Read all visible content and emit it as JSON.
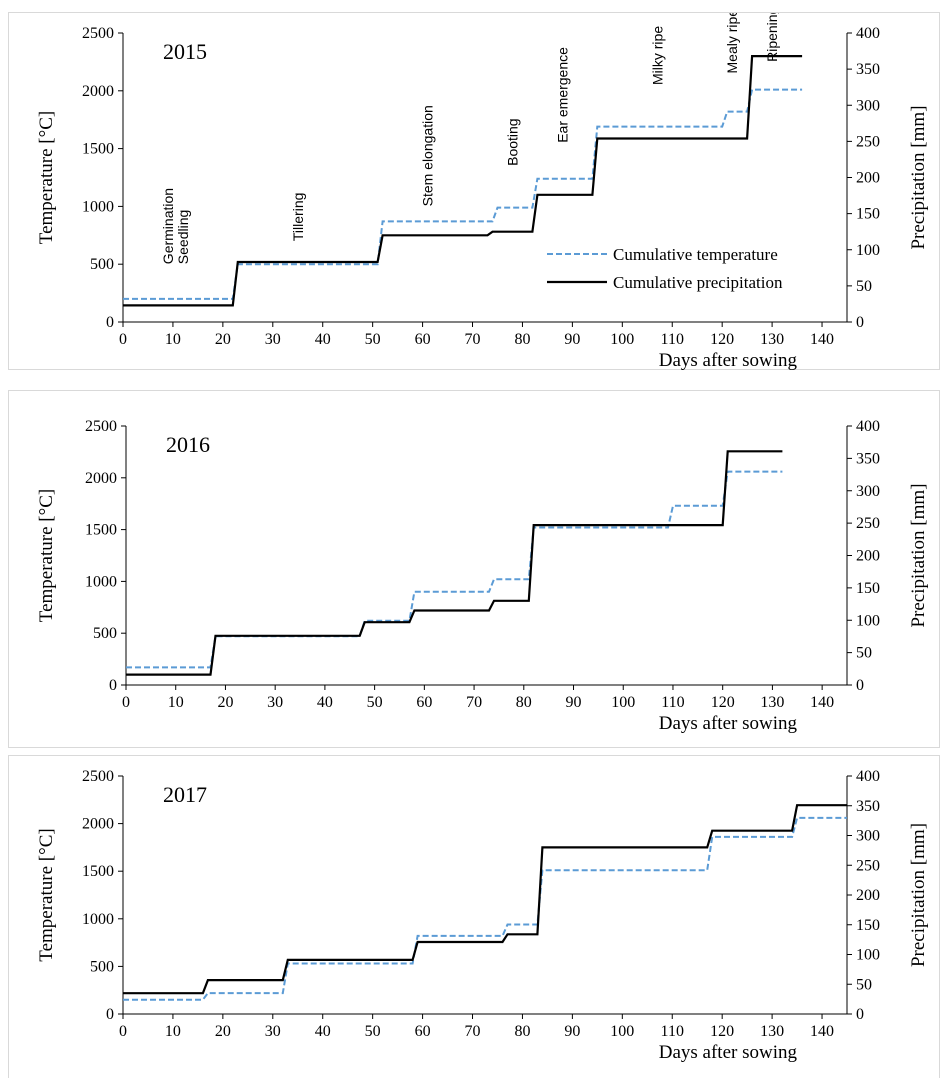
{
  "colors": {
    "temperature": "#5B9BD5",
    "precipitation": "#000000"
  },
  "chart_data": [
    {
      "type": "line",
      "year_label": "2015",
      "xlabel": "Days after sowing",
      "ylabel": "Temperature [°C]",
      "y2label": "Precipitation [mm]",
      "xlim": [
        0,
        145
      ],
      "ylim": [
        0,
        2500
      ],
      "y2lim": [
        0,
        400
      ],
      "xticks": [
        0,
        10,
        20,
        30,
        40,
        50,
        60,
        70,
        80,
        90,
        100,
        110,
        120,
        130,
        140
      ],
      "yticks": [
        0,
        500,
        1000,
        1500,
        2000,
        2500
      ],
      "y2ticks": [
        0,
        50,
        100,
        150,
        200,
        250,
        300,
        350,
        400
      ],
      "legend": [
        "Cumulative temperature",
        "Cumulative precipitation"
      ],
      "legend_position": "right",
      "stages": [
        {
          "label": "Germination",
          "x": 10,
          "y": 500
        },
        {
          "label": "Seedling",
          "x": 13,
          "y": 500
        },
        {
          "label": "Tillering",
          "x": 36,
          "y": 700
        },
        {
          "label": "Stem elongation",
          "x": 62,
          "y": 1000
        },
        {
          "label": "Booting",
          "x": 79,
          "y": 1350
        },
        {
          "label": "Ear emergence",
          "x": 89,
          "y": 1550
        },
        {
          "label": "Milky ripe",
          "x": 108,
          "y": 2050
        },
        {
          "label": "Mealy ripe",
          "x": 123,
          "y": 2150
        },
        {
          "label": "Ripening",
          "x": 131,
          "y": 2250
        }
      ],
      "series": [
        {
          "name": "Cumulative temperature",
          "style": "dashed",
          "x": [
            0,
            22,
            23,
            51,
            52,
            74,
            75,
            82,
            83,
            94,
            95,
            120,
            121,
            125,
            126,
            136
          ],
          "y": [
            200,
            200,
            500,
            500,
            870,
            870,
            990,
            990,
            1240,
            1240,
            1690,
            1690,
            1820,
            1820,
            2010,
            2010
          ]
        },
        {
          "name": "Cumulative precipitation",
          "style": "solid",
          "axis": "y2",
          "x": [
            0,
            22,
            23,
            51,
            52,
            73,
            74,
            82,
            83,
            94,
            95,
            125,
            126,
            136
          ],
          "y": [
            23,
            23,
            83,
            83,
            120,
            120,
            125,
            125,
            176,
            176,
            254,
            254,
            368,
            368
          ]
        }
      ]
    },
    {
      "type": "line",
      "year_label": "2016",
      "xlabel": "Days after sowing",
      "ylabel": "Temperature [°C]",
      "y2label": "Precipitation [mm]",
      "xlim": [
        0,
        145
      ],
      "ylim": [
        0,
        2500
      ],
      "y2lim": [
        0,
        400
      ],
      "xticks": [
        0,
        10,
        20,
        30,
        40,
        50,
        60,
        70,
        80,
        90,
        100,
        110,
        120,
        130,
        140
      ],
      "yticks": [
        0,
        500,
        1000,
        1500,
        2000,
        2500
      ],
      "y2ticks": [
        0,
        50,
        100,
        150,
        200,
        250,
        300,
        350,
        400
      ],
      "series": [
        {
          "name": "Cumulative temperature",
          "style": "dashed",
          "x": [
            0,
            17,
            18,
            47,
            48,
            57,
            58,
            73,
            74,
            81,
            82,
            109,
            110,
            120,
            121,
            132
          ],
          "y": [
            170,
            170,
            470,
            470,
            620,
            620,
            900,
            900,
            1020,
            1020,
            1520,
            1520,
            1730,
            1730,
            2060,
            2060
          ]
        },
        {
          "name": "Cumulative precipitation",
          "style": "solid",
          "axis": "y2",
          "x": [
            0,
            17,
            18,
            47,
            48,
            57,
            58,
            73,
            74,
            81,
            82,
            120,
            121,
            132
          ],
          "y": [
            16,
            16,
            76,
            76,
            97,
            97,
            115,
            115,
            130,
            130,
            247,
            247,
            361,
            361
          ]
        }
      ]
    },
    {
      "type": "line",
      "year_label": "2017",
      "xlabel": "Days after sowing",
      "ylabel": "Temperature [°C]",
      "y2label": "Precipitation [mm]",
      "xlim": [
        0,
        145
      ],
      "ylim": [
        0,
        2500
      ],
      "y2lim": [
        0,
        400
      ],
      "xticks": [
        0,
        10,
        20,
        30,
        40,
        50,
        60,
        70,
        80,
        90,
        100,
        110,
        120,
        130,
        140
      ],
      "yticks": [
        0,
        500,
        1000,
        1500,
        2000,
        2500
      ],
      "y2ticks": [
        0,
        50,
        100,
        150,
        200,
        250,
        300,
        350,
        400
      ],
      "series": [
        {
          "name": "Cumulative temperature",
          "style": "dashed",
          "x": [
            0,
            16,
            17,
            32,
            33,
            58,
            59,
            76,
            77,
            83,
            84,
            117,
            118,
            134,
            135,
            145
          ],
          "y": [
            150,
            150,
            220,
            220,
            530,
            530,
            820,
            820,
            940,
            940,
            1510,
            1510,
            1860,
            1860,
            2060,
            2060
          ]
        },
        {
          "name": "Cumulative precipitation",
          "style": "solid",
          "axis": "y2",
          "x": [
            0,
            16,
            17,
            32,
            33,
            58,
            59,
            76,
            77,
            83,
            84,
            117,
            118,
            134,
            135,
            145
          ],
          "y": [
            35,
            35,
            57,
            57,
            91,
            91,
            121,
            121,
            134,
            134,
            280,
            280,
            308,
            308,
            351,
            351
          ]
        }
      ]
    }
  ]
}
